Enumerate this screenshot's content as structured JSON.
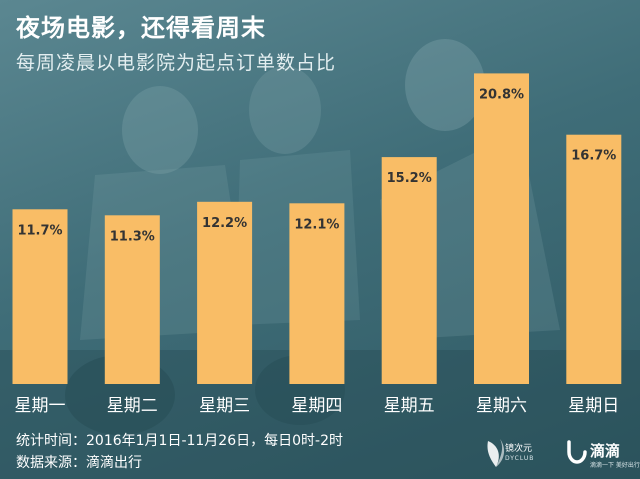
{
  "header": {
    "title": "夜场电影，还得看周末",
    "subtitle": "每周凌晨以电影院为起点订单数占比"
  },
  "chart_data": {
    "type": "bar",
    "categories": [
      "星期一",
      "星期二",
      "星期三",
      "星期四",
      "星期五",
      "星期六",
      "星期日"
    ],
    "values": [
      11.7,
      11.3,
      12.2,
      12.1,
      15.2,
      20.8,
      16.7
    ],
    "value_labels": [
      "11.7%",
      "11.3%",
      "12.2%",
      "12.1%",
      "15.2%",
      "20.8%",
      "16.7%"
    ],
    "title": "夜场电影，还得看周末",
    "subtitle": "每周凌晨以电影院为起点订单数占比",
    "ylim": [
      0,
      21.7
    ],
    "grid": false,
    "legend": false,
    "bar_color": "#f9bd66",
    "label_color": "#333333",
    "category_label_color": "#ffffff"
  },
  "footer": {
    "stat_period": "统计时间：2016年1月1日-11月26日，每日0时-2时",
    "data_source": "数据来源：滴滴出行"
  },
  "brands": {
    "club_name": "镜次元",
    "club_sub": "DYCLUB",
    "didi_name": "滴滴",
    "didi_slogan": "滴滴一下 美好出行"
  },
  "colors": {
    "background": "#3f6d78",
    "bar": "#f9bd66",
    "text": "#ffffff"
  }
}
